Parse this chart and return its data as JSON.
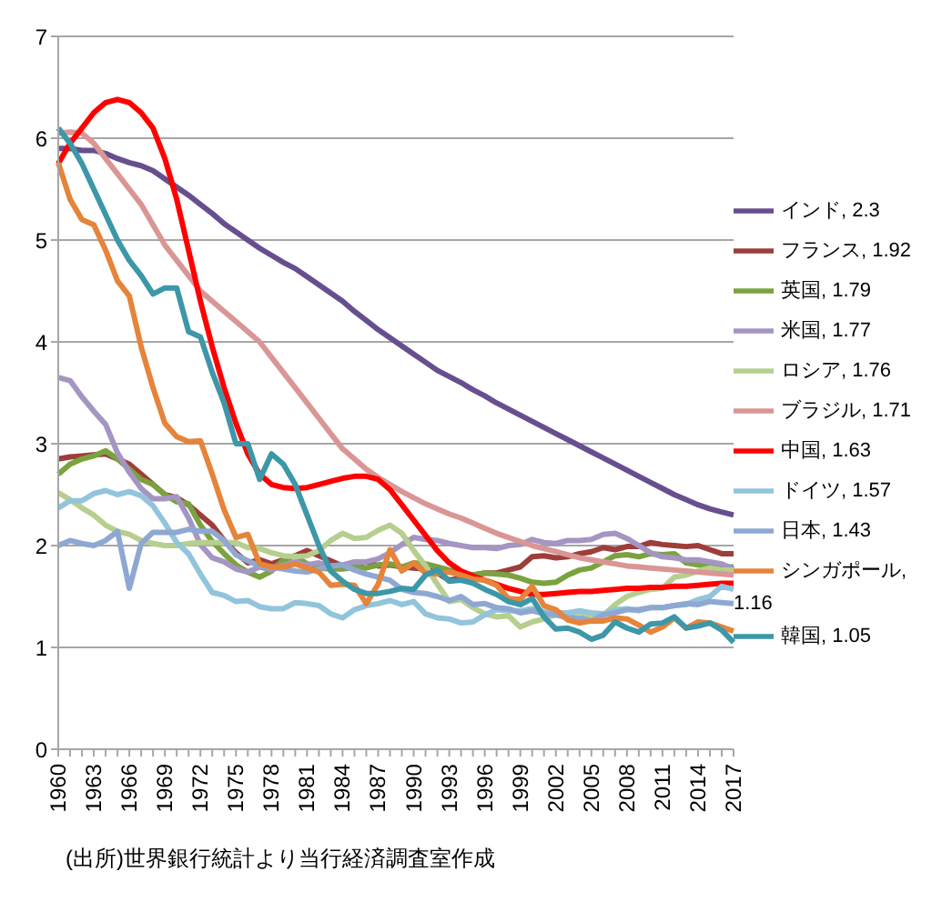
{
  "chart_data": {
    "type": "line",
    "categories": [
      "1960",
      null,
      null,
      "1963",
      null,
      null,
      "1966",
      null,
      null,
      "1969",
      null,
      null,
      "1972",
      null,
      null,
      "1975",
      null,
      null,
      "1978",
      null,
      null,
      "1981",
      null,
      null,
      "1984",
      null,
      null,
      "1987",
      null,
      null,
      "1990",
      null,
      null,
      "1993",
      null,
      null,
      "1996",
      null,
      null,
      "1999",
      null,
      null,
      "2002",
      null,
      null,
      "2005",
      null,
      null,
      "2008",
      null,
      null,
      "2011",
      null,
      null,
      "2014",
      null,
      null,
      "2017"
    ],
    "ylim": [
      0,
      7
    ],
    "yticks": [
      0,
      1,
      2,
      3,
      4,
      5,
      6,
      7
    ],
    "grid": "y",
    "legend": "right",
    "marker": "none",
    "line_style": "solid",
    "annotations": [
      "(出所)世界銀行統計より当行経済調査室作成"
    ],
    "series": [
      {
        "name": "インド, 2.3",
        "color": "#674f8f",
        "values": [
          5.9,
          5.9,
          5.88,
          5.88,
          5.85,
          5.8,
          5.76,
          5.73,
          5.68,
          5.6,
          5.52,
          5.44,
          5.35,
          5.26,
          5.16,
          5.08,
          5.0,
          4.92,
          4.85,
          4.78,
          4.72,
          4.64,
          4.56,
          4.48,
          4.4,
          4.3,
          4.21,
          4.12,
          4.04,
          3.96,
          3.88,
          3.8,
          3.72,
          3.66,
          3.6,
          3.53,
          3.47,
          3.4,
          3.34,
          3.28,
          3.22,
          3.16,
          3.1,
          3.04,
          2.98,
          2.92,
          2.86,
          2.8,
          2.74,
          2.68,
          2.62,
          2.56,
          2.5,
          2.45,
          2.4,
          2.36,
          2.33,
          2.3
        ]
      },
      {
        "name": "フランス, 1.92",
        "color": "#9e3d3a",
        "values": [
          2.85,
          2.87,
          2.88,
          2.89,
          2.9,
          2.85,
          2.8,
          2.7,
          2.6,
          2.5,
          2.47,
          2.4,
          2.3,
          2.2,
          2.05,
          1.93,
          1.83,
          1.86,
          1.82,
          1.86,
          1.9,
          1.95,
          1.9,
          1.85,
          1.8,
          1.81,
          1.84,
          1.8,
          1.81,
          1.79,
          1.78,
          1.77,
          1.73,
          1.66,
          1.68,
          1.71,
          1.73,
          1.73,
          1.76,
          1.79,
          1.89,
          1.9,
          1.88,
          1.89,
          1.92,
          1.94,
          1.98,
          1.96,
          1.99,
          1.99,
          2.03,
          2.01,
          2.0,
          1.99,
          2.0,
          1.96,
          1.92,
          1.92
        ]
      },
      {
        "name": "英国, 1.79",
        "color": "#7aa23f",
        "values": [
          2.7,
          2.8,
          2.85,
          2.88,
          2.93,
          2.85,
          2.75,
          2.65,
          2.6,
          2.5,
          2.43,
          2.41,
          2.2,
          2.04,
          1.92,
          1.81,
          1.74,
          1.69,
          1.75,
          1.86,
          1.9,
          1.82,
          1.78,
          1.77,
          1.77,
          1.79,
          1.78,
          1.81,
          1.82,
          1.79,
          1.83,
          1.82,
          1.79,
          1.76,
          1.74,
          1.71,
          1.73,
          1.72,
          1.71,
          1.68,
          1.64,
          1.63,
          1.64,
          1.71,
          1.76,
          1.78,
          1.84,
          1.9,
          1.91,
          1.89,
          1.92,
          1.91,
          1.92,
          1.83,
          1.81,
          1.8,
          1.79,
          1.79
        ]
      },
      {
        "name": "米国, 1.77",
        "color": "#a595c3",
        "values": [
          3.65,
          3.62,
          3.46,
          3.32,
          3.19,
          2.91,
          2.72,
          2.56,
          2.46,
          2.46,
          2.48,
          2.27,
          2.01,
          1.88,
          1.84,
          1.77,
          1.74,
          1.79,
          1.76,
          1.81,
          1.84,
          1.81,
          1.83,
          1.8,
          1.81,
          1.84,
          1.84,
          1.87,
          1.93,
          2.01,
          2.08,
          2.06,
          2.05,
          2.02,
          2.0,
          1.98,
          1.98,
          1.97,
          2.0,
          2.01,
          2.06,
          2.03,
          2.02,
          2.05,
          2.05,
          2.06,
          2.11,
          2.12,
          2.07,
          2.0,
          1.93,
          1.89,
          1.88,
          1.86,
          1.86,
          1.84,
          1.82,
          1.77
        ]
      },
      {
        "name": "ロシア, 1.76",
        "color": "#b6cf8e",
        "values": [
          2.52,
          2.45,
          2.37,
          2.3,
          2.2,
          2.14,
          2.11,
          2.05,
          2.02,
          2.0,
          2.0,
          2.02,
          2.03,
          2.03,
          2.03,
          2.03,
          1.98,
          1.97,
          1.93,
          1.9,
          1.89,
          1.9,
          1.95,
          2.05,
          2.12,
          2.07,
          2.08,
          2.15,
          2.2,
          2.12,
          1.95,
          1.8,
          1.62,
          1.45,
          1.47,
          1.39,
          1.33,
          1.3,
          1.31,
          1.2,
          1.25,
          1.28,
          1.32,
          1.33,
          1.35,
          1.3,
          1.31,
          1.42,
          1.5,
          1.54,
          1.57,
          1.58,
          1.69,
          1.71,
          1.75,
          1.78,
          1.76,
          1.76
        ]
      },
      {
        "name": "ブラジル, 1.71",
        "color": "#d99694",
        "values": [
          6.05,
          6.06,
          6.05,
          5.95,
          5.8,
          5.65,
          5.5,
          5.35,
          5.15,
          4.95,
          4.8,
          4.65,
          4.5,
          4.4,
          4.3,
          4.2,
          4.1,
          4.0,
          3.85,
          3.7,
          3.55,
          3.4,
          3.25,
          3.1,
          2.95,
          2.85,
          2.75,
          2.67,
          2.6,
          2.53,
          2.47,
          2.41,
          2.36,
          2.31,
          2.27,
          2.22,
          2.17,
          2.12,
          2.08,
          2.04,
          2.0,
          1.97,
          1.94,
          1.91,
          1.88,
          1.86,
          1.84,
          1.82,
          1.8,
          1.79,
          1.78,
          1.77,
          1.76,
          1.75,
          1.74,
          1.73,
          1.72,
          1.71
        ]
      },
      {
        "name": "中国, 1.63",
        "color": "#ff0000",
        "values": [
          5.75,
          5.95,
          6.1,
          6.25,
          6.35,
          6.38,
          6.35,
          6.25,
          6.1,
          5.8,
          5.4,
          4.9,
          4.4,
          3.95,
          3.55,
          3.2,
          2.9,
          2.7,
          2.6,
          2.57,
          2.56,
          2.57,
          2.6,
          2.63,
          2.66,
          2.68,
          2.68,
          2.65,
          2.55,
          2.4,
          2.25,
          2.1,
          1.95,
          1.83,
          1.75,
          1.7,
          1.66,
          1.62,
          1.58,
          1.55,
          1.52,
          1.52,
          1.53,
          1.54,
          1.55,
          1.55,
          1.56,
          1.57,
          1.58,
          1.58,
          1.59,
          1.59,
          1.6,
          1.6,
          1.61,
          1.62,
          1.63,
          1.63
        ]
      },
      {
        "name": "ドイツ, 1.57",
        "color": "#92c4dc",
        "values": [
          2.37,
          2.44,
          2.44,
          2.51,
          2.54,
          2.5,
          2.53,
          2.49,
          2.39,
          2.22,
          2.03,
          1.92,
          1.72,
          1.54,
          1.51,
          1.45,
          1.46,
          1.4,
          1.38,
          1.38,
          1.44,
          1.43,
          1.41,
          1.33,
          1.29,
          1.37,
          1.41,
          1.43,
          1.46,
          1.42,
          1.45,
          1.33,
          1.29,
          1.28,
          1.24,
          1.25,
          1.32,
          1.37,
          1.36,
          1.36,
          1.38,
          1.35,
          1.34,
          1.34,
          1.36,
          1.34,
          1.33,
          1.37,
          1.38,
          1.36,
          1.39,
          1.39,
          1.41,
          1.42,
          1.47,
          1.5,
          1.6,
          1.57
        ]
      },
      {
        "name": "日本, 1.43",
        "color": "#8ea8d2",
        "values": [
          2.0,
          2.05,
          2.02,
          2.0,
          2.05,
          2.14,
          1.58,
          2.02,
          2.13,
          2.13,
          2.13,
          2.16,
          2.14,
          2.14,
          2.05,
          1.91,
          1.85,
          1.8,
          1.79,
          1.77,
          1.75,
          1.74,
          1.77,
          1.8,
          1.81,
          1.76,
          1.72,
          1.69,
          1.66,
          1.57,
          1.54,
          1.53,
          1.5,
          1.46,
          1.5,
          1.42,
          1.43,
          1.39,
          1.38,
          1.34,
          1.36,
          1.33,
          1.32,
          1.29,
          1.29,
          1.26,
          1.32,
          1.34,
          1.37,
          1.37,
          1.39,
          1.39,
          1.41,
          1.43,
          1.42,
          1.45,
          1.44,
          1.43
        ]
      },
      {
        "name": "シンガポール, 1.16",
        "color": "#e5843a",
        "values": [
          5.76,
          5.4,
          5.2,
          5.15,
          4.9,
          4.6,
          4.45,
          3.95,
          3.55,
          3.2,
          3.07,
          3.02,
          3.03,
          2.7,
          2.35,
          2.08,
          2.11,
          1.82,
          1.79,
          1.79,
          1.82,
          1.78,
          1.74,
          1.61,
          1.62,
          1.61,
          1.43,
          1.62,
          1.96,
          1.75,
          1.83,
          1.73,
          1.72,
          1.74,
          1.71,
          1.67,
          1.66,
          1.61,
          1.48,
          1.47,
          1.6,
          1.41,
          1.37,
          1.27,
          1.24,
          1.26,
          1.26,
          1.29,
          1.28,
          1.22,
          1.15,
          1.2,
          1.29,
          1.19,
          1.25,
          1.24,
          1.2,
          1.16
        ]
      },
      {
        "name": "韓国, 1.05",
        "color": "#3c97a8",
        "values": [
          6.1,
          5.95,
          5.75,
          5.5,
          5.25,
          5.0,
          4.8,
          4.65,
          4.47,
          4.53,
          4.53,
          4.1,
          4.05,
          3.7,
          3.4,
          3.0,
          3.0,
          2.65,
          2.9,
          2.8,
          2.6,
          2.3,
          2.0,
          1.75,
          1.65,
          1.57,
          1.53,
          1.53,
          1.55,
          1.58,
          1.57,
          1.71,
          1.76,
          1.65,
          1.66,
          1.63,
          1.57,
          1.52,
          1.45,
          1.42,
          1.48,
          1.3,
          1.18,
          1.19,
          1.15,
          1.08,
          1.12,
          1.25,
          1.19,
          1.15,
          1.23,
          1.24,
          1.3,
          1.19,
          1.21,
          1.24,
          1.17,
          1.05
        ]
      }
    ]
  }
}
